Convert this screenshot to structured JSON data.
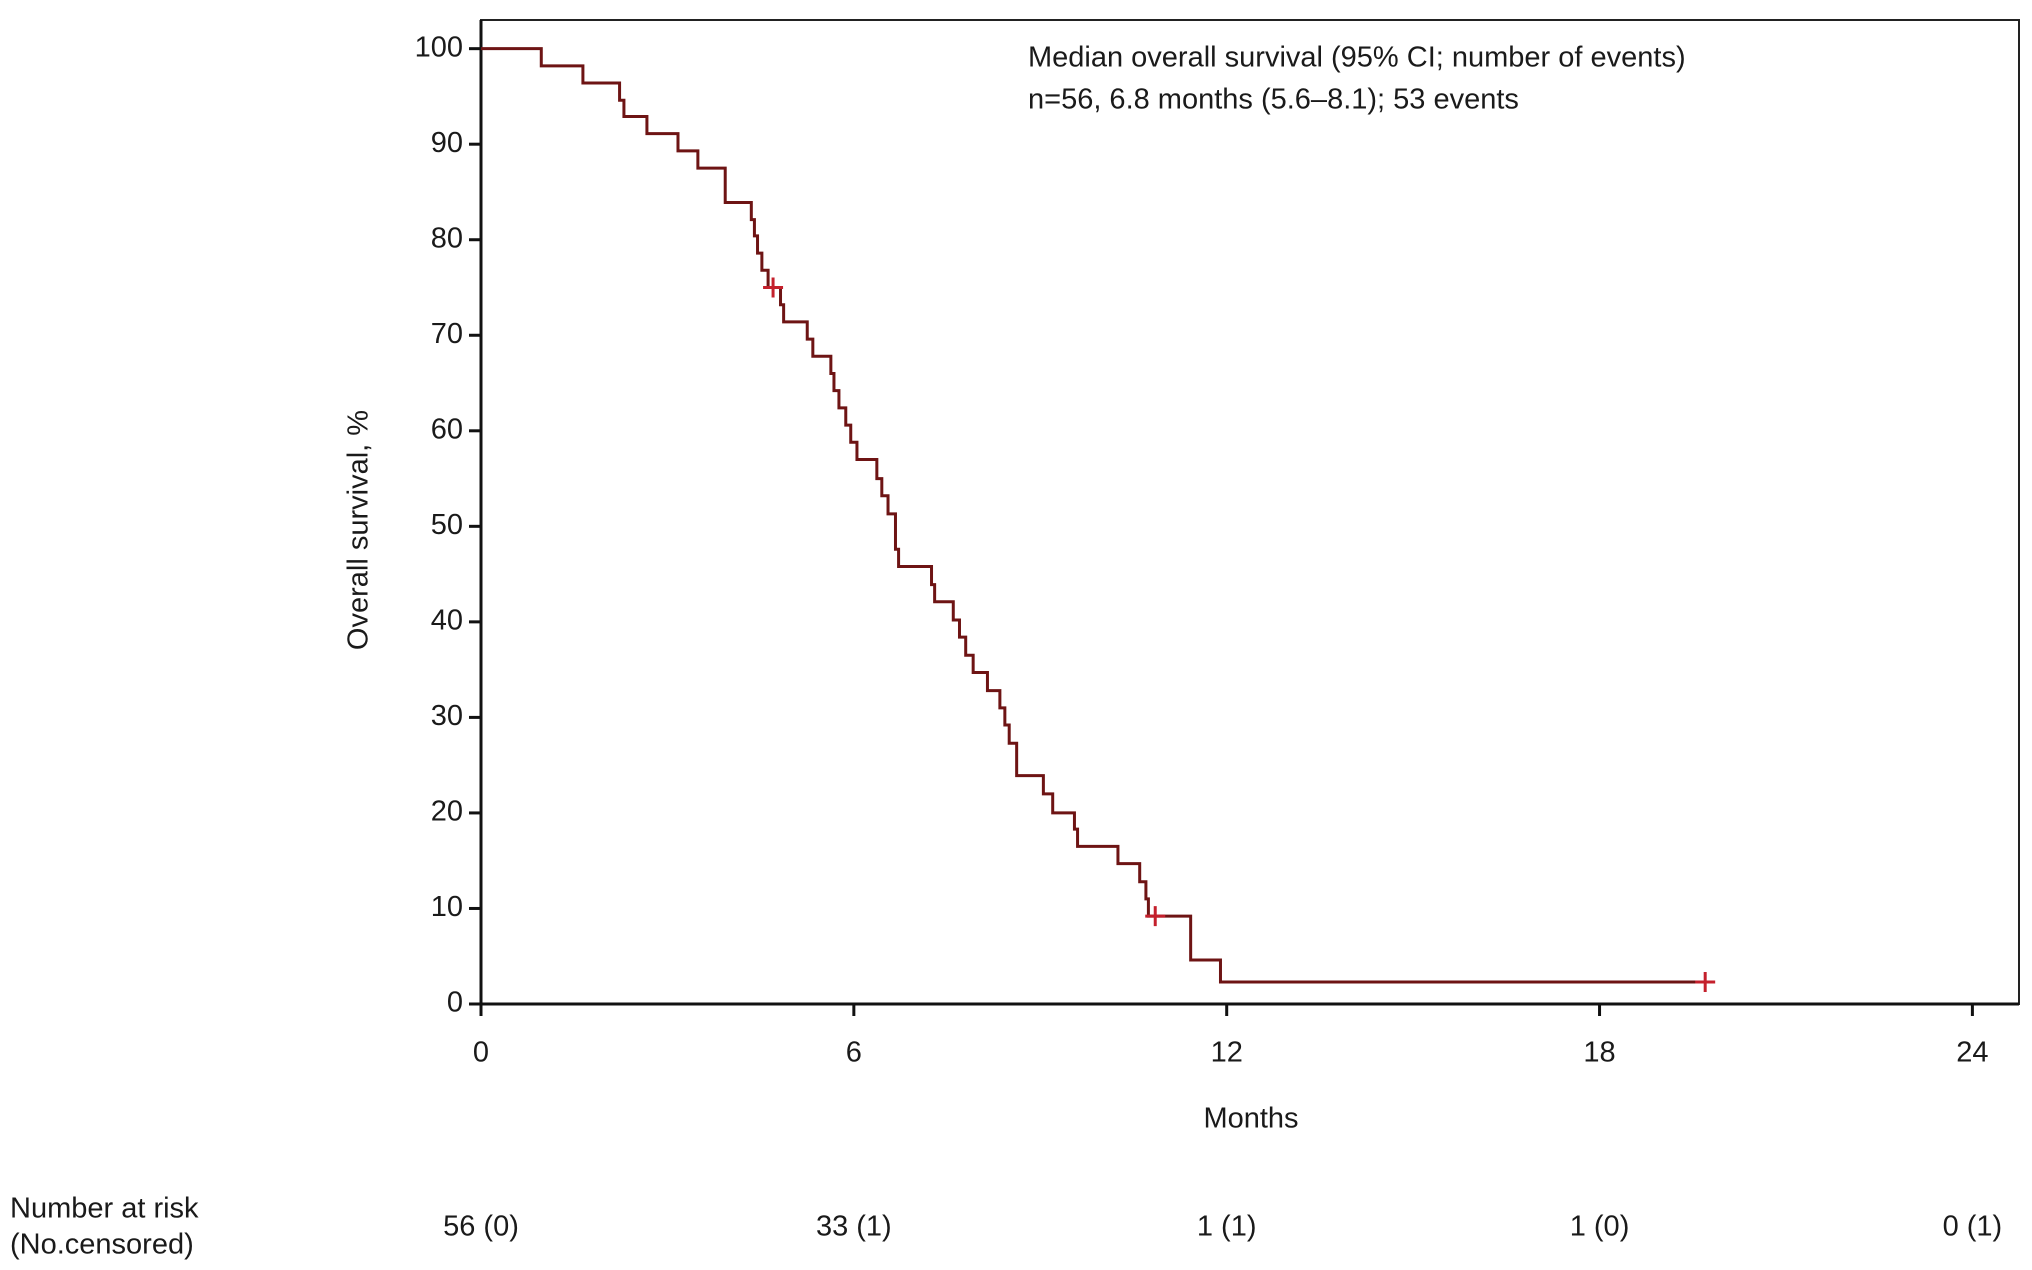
{
  "chart_data": {
    "type": "step",
    "annotation": [
      "Median overall survival (95% CI; number of events)",
      "n=56, 6.8 months (5.6–8.1); 53 events"
    ],
    "x_label": "Months",
    "y_label": "Overall survival, %",
    "xlim": [
      0,
      24.75
    ],
    "ylim": [
      0,
      103
    ],
    "xticks": [
      0,
      6,
      12,
      18,
      24
    ],
    "yticks": [
      0,
      10,
      20,
      30,
      40,
      50,
      60,
      70,
      80,
      90,
      100
    ],
    "series": [
      {
        "color": "#6e1414",
        "x": [
          0,
          0.97,
          1.64,
          2.23,
          2.3,
          2.67,
          3.17,
          3.49,
          3.93,
          4.35,
          4.4,
          4.45,
          4.52,
          4.62,
          4.82,
          4.87,
          5.25,
          5.34,
          5.63,
          5.68,
          5.76,
          5.87,
          5.95,
          6.05,
          6.37,
          6.45,
          6.55,
          6.67,
          6.72,
          7.25,
          7.3,
          7.6,
          7.7,
          7.8,
          7.92,
          8.15,
          8.35,
          8.43,
          8.5,
          8.62,
          9.05,
          9.2,
          9.55,
          9.6,
          10.25,
          10.6,
          10.7,
          10.74,
          11.42,
          11.9,
          19.7
        ],
        "values": [
          100,
          98.2,
          96.4,
          94.6,
          92.9,
          91.1,
          89.3,
          87.5,
          83.9,
          82.1,
          80.4,
          78.6,
          76.8,
          75.0,
          73.2,
          71.4,
          69.6,
          67.8,
          66.0,
          64.2,
          62.4,
          60.6,
          58.8,
          57.0,
          55.0,
          53.2,
          51.3,
          47.6,
          45.8,
          43.9,
          42.1,
          40.2,
          38.4,
          36.5,
          34.7,
          32.8,
          31.0,
          29.2,
          27.3,
          23.9,
          22.0,
          20.0,
          18.3,
          16.5,
          14.7,
          12.8,
          11.0,
          9.2,
          4.6,
          2.3,
          2.3
        ]
      }
    ],
    "censored": {
      "color": "#c4202c",
      "x": [
        4.7,
        10.85,
        19.7
      ],
      "values": [
        75.0,
        9.2,
        2.3
      ]
    },
    "risk_table": {
      "title": [
        "Number at risk",
        "(No.censored)"
      ],
      "labels": [
        "56 (0)",
        "33 (1)",
        "1 (1)",
        "1 (0)",
        "0 (1)"
      ]
    }
  }
}
